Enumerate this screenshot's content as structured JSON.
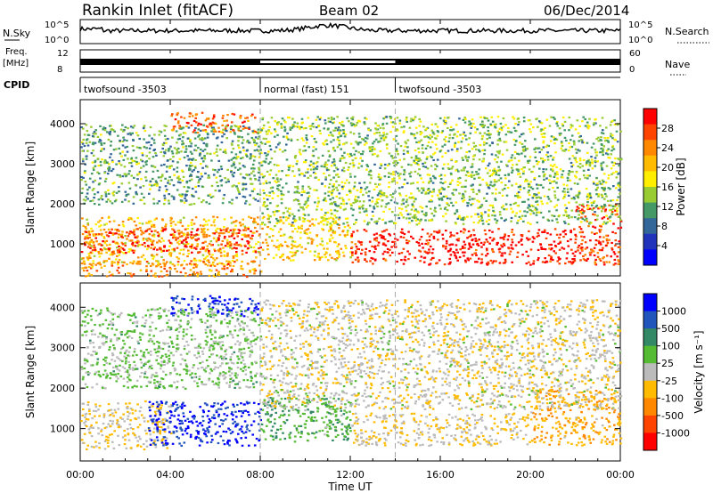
{
  "header": {
    "title": "Rankin Inlet (fitACF)",
    "beam": "Beam 02",
    "date": "06/Dec/2014"
  },
  "strips": {
    "nsky": {
      "label": "N.Sky",
      "ticks": [
        "10^5",
        "10^0"
      ],
      "right_label": "N.Search",
      "right_ticks": [
        "10^5",
        "10^0"
      ]
    },
    "freq": {
      "label1": "Freq.",
      "label2": "[MHz]",
      "ticks": [
        "12",
        "8"
      ],
      "right_label": "Nave",
      "right_ticks": [
        "60",
        "0"
      ]
    },
    "cpid": {
      "label": "CPID",
      "segments": [
        {
          "name": "twofsound -3503",
          "start_h": 0,
          "end_h": 8
        },
        {
          "name": "normal (fast) 151",
          "start_h": 8,
          "end_h": 14
        },
        {
          "name": "twofsound -3503",
          "start_h": 14,
          "end_h": 24
        }
      ]
    }
  },
  "colorbars": {
    "power": {
      "label": "Power [dB]",
      "ticks": [
        "28",
        "24",
        "20",
        "16",
        "12",
        "8",
        "4"
      ],
      "colors": [
        "#ff0000",
        "#ff4400",
        "#ff8800",
        "#ffbb00",
        "#ffee00",
        "#99cc33",
        "#449966",
        "#336699",
        "#2233bb",
        "#0000ff"
      ]
    },
    "velocity": {
      "label": "Velocity [m s⁻¹]",
      "ticks": [
        "1000",
        "500",
        "100",
        "25",
        "-25",
        "-100",
        "-500",
        "-1000"
      ],
      "colors": [
        "#0000ff",
        "#2255bb",
        "#338866",
        "#55bb33",
        "#bbbbbb",
        "#ffbb00",
        "#ff8800",
        "#ff4400",
        "#ff0000"
      ]
    }
  },
  "chart_data": [
    {
      "type": "heatmap",
      "panel": "power",
      "ylabel": "Slant Range [km]",
      "y_ticks": [
        1000,
        2000,
        3000,
        4000
      ],
      "ylim": [
        200,
        4600
      ],
      "xlim_hours": [
        0,
        24
      ],
      "zlim": [
        0,
        32
      ],
      "bands": [
        {
          "t0": 0,
          "t1": 8,
          "r0": 500,
          "r1": 1700,
          "z": 20
        },
        {
          "t0": 0,
          "t1": 8,
          "r0": 800,
          "r1": 1400,
          "z": 28
        },
        {
          "t0": 0,
          "t1": 8,
          "r0": 200,
          "r1": 600,
          "z": 24
        },
        {
          "t0": 4,
          "t1": 8,
          "r0": 3800,
          "r1": 4300,
          "z": 26
        },
        {
          "t0": 0,
          "t1": 8,
          "r0": 2000,
          "r1": 4000,
          "z": 12
        },
        {
          "t0": 8,
          "t1": 12,
          "r0": 600,
          "r1": 1700,
          "z": 20
        },
        {
          "t0": 12,
          "t1": 22,
          "r0": 500,
          "r1": 1400,
          "z": 30
        },
        {
          "t0": 22,
          "t1": 24,
          "r0": 500,
          "r1": 2000,
          "z": 28
        },
        {
          "t0": 8,
          "t1": 24,
          "r0": 1500,
          "r1": 4200,
          "z": 14
        }
      ]
    },
    {
      "type": "heatmap",
      "panel": "velocity",
      "ylabel": "Slant Range [km]",
      "y_ticks": [
        1000,
        2000,
        3000,
        4000
      ],
      "ylim": [
        200,
        4600
      ],
      "xlim_hours": [
        0,
        24
      ],
      "zlim": [
        -1000,
        1000
      ],
      "bands": [
        {
          "t0": 0,
          "t1": 4,
          "r0": 500,
          "r1": 1700,
          "z": -100
        },
        {
          "t0": 3,
          "t1": 8,
          "r0": 600,
          "r1": 1700,
          "z": 800
        },
        {
          "t0": 4,
          "t1": 8,
          "r0": 3800,
          "r1": 4300,
          "z": 800
        },
        {
          "t0": 0,
          "t1": 8,
          "r0": 2000,
          "r1": 4000,
          "z": 150
        },
        {
          "t0": 8,
          "t1": 12,
          "r0": 700,
          "r1": 1800,
          "z": 300
        },
        {
          "t0": 12,
          "t1": 20,
          "r0": 600,
          "r1": 1400,
          "z": -100
        },
        {
          "t0": 20,
          "t1": 24,
          "r0": 600,
          "r1": 2000,
          "z": -300
        },
        {
          "t0": 8,
          "t1": 24,
          "r0": 1500,
          "r1": 4200,
          "z": -50
        }
      ]
    }
  ],
  "xaxis": {
    "label": "Time UT",
    "ticks": [
      "00:00",
      "04:00",
      "08:00",
      "12:00",
      "16:00",
      "20:00",
      "00:00"
    ],
    "tick_hours": [
      0,
      4,
      8,
      12,
      16,
      20,
      24
    ]
  }
}
